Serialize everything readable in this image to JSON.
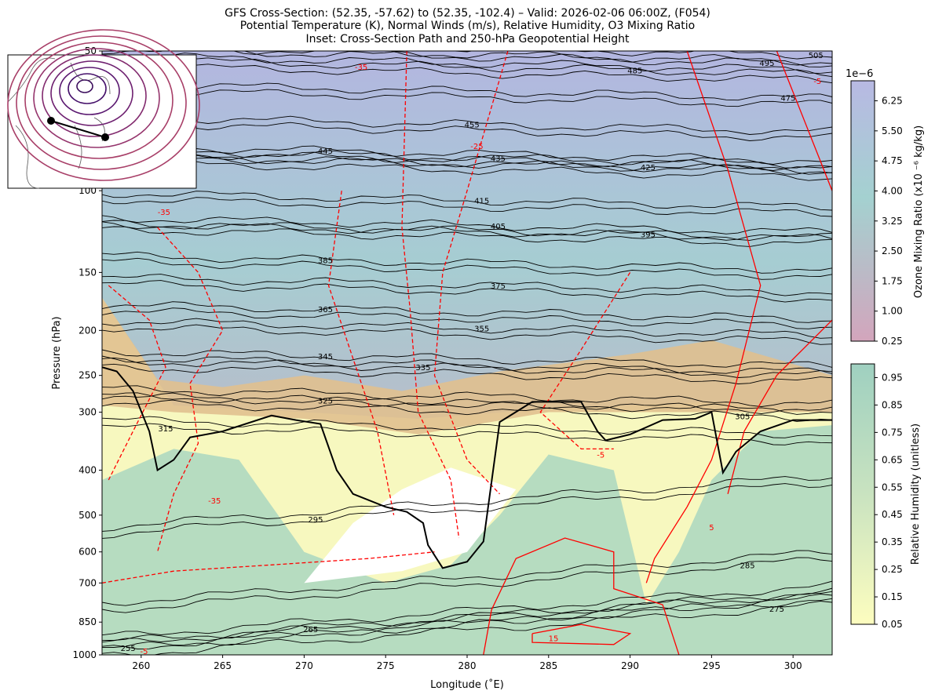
{
  "chart_data": {
    "type": "contour",
    "title": [
      "GFS Cross-Section: (52.35, -57.62) to (52.35, -102.4) – Valid: 2026-02-06 06:00Z, (F054)",
      "Potential Temperature (K), Normal Winds (m/s), Relative Humidity, O3 Mixing Ratio",
      "Inset: Cross-Section Path and 250-hPa Geopotential Height"
    ],
    "xlabel": "Longitude (˚E)",
    "ylabel": "Pressure (hPa)",
    "xlim": [
      257.6,
      302.4
    ],
    "ylim": [
      1000,
      50
    ],
    "yscale": "log",
    "xticks": [
      260,
      265,
      270,
      275,
      280,
      285,
      290,
      295,
      300
    ],
    "yticks": [
      50,
      100,
      150,
      200,
      250,
      300,
      400,
      500,
      600,
      700,
      850,
      1000
    ],
    "isentrope_labels": [
      {
        "v": "255",
        "lon": 259.2,
        "p": 965
      },
      {
        "v": "265",
        "lon": 270.4,
        "p": 880
      },
      {
        "v": "275",
        "lon": 299,
        "p": 795
      },
      {
        "v": "285",
        "lon": 297.2,
        "p": 640
      },
      {
        "v": "295",
        "lon": 270.7,
        "p": 510
      },
      {
        "v": "305",
        "lon": 296.9,
        "p": 306
      },
      {
        "v": "315",
        "lon": 261.5,
        "p": 325
      },
      {
        "v": "325",
        "lon": 271.3,
        "p": 283
      },
      {
        "v": "335",
        "lon": 277.3,
        "p": 240
      },
      {
        "v": "345",
        "lon": 271.3,
        "p": 227
      },
      {
        "v": "355",
        "lon": 280.9,
        "p": 198
      },
      {
        "v": "365",
        "lon": 271.3,
        "p": 180
      },
      {
        "v": "375",
        "lon": 281.9,
        "p": 160
      },
      {
        "v": "385",
        "lon": 271.3,
        "p": 141
      },
      {
        "v": "395",
        "lon": 291.1,
        "p": 124
      },
      {
        "v": "405",
        "lon": 281.9,
        "p": 119
      },
      {
        "v": "415",
        "lon": 280.9,
        "p": 105
      },
      {
        "v": "425",
        "lon": 291.1,
        "p": 89
      },
      {
        "v": "435",
        "lon": 281.9,
        "p": 85
      },
      {
        "v": "445",
        "lon": 271.3,
        "p": 82
      },
      {
        "v": "455",
        "lon": 280.3,
        "p": 72
      },
      {
        "v": "475",
        "lon": 299.7,
        "p": 63
      },
      {
        "v": "485",
        "lon": 290.3,
        "p": 55
      },
      {
        "v": "495",
        "lon": 298.4,
        "p": 53
      },
      {
        "v": "505",
        "lon": 301.4,
        "p": 51
      }
    ],
    "wind_labels": [
      {
        "v": "-35",
        "lon": 273.5,
        "p": 54
      },
      {
        "v": "-35",
        "lon": 261.4,
        "p": 111
      },
      {
        "v": "-25",
        "lon": 280.6,
        "p": 80
      },
      {
        "v": "-35",
        "lon": 264.5,
        "p": 465
      },
      {
        "v": "-5",
        "lon": 288.2,
        "p": 370
      },
      {
        "v": "5",
        "lon": 295,
        "p": 530
      },
      {
        "v": "15",
        "lon": 285.3,
        "p": 920
      },
      {
        "v": "-5",
        "lon": 259.6,
        "p": 980
      },
      {
        "v": "-5",
        "lon": 301.5,
        "p": 58
      }
    ],
    "tropopause_line": [
      [
        257.6,
        240
      ],
      [
        258.5,
        245
      ],
      [
        259.5,
        270
      ],
      [
        260.5,
        330
      ],
      [
        261,
        400
      ],
      [
        262,
        380
      ],
      [
        263,
        340
      ],
      [
        265,
        330
      ],
      [
        268,
        305
      ],
      [
        269.5,
        312
      ],
      [
        271,
        318
      ],
      [
        272,
        400
      ],
      [
        273,
        450
      ],
      [
        275,
        480
      ],
      [
        276.3,
        492
      ],
      [
        277.3,
        520
      ],
      [
        277.6,
        580
      ],
      [
        278.5,
        650
      ],
      [
        280,
        630
      ],
      [
        281,
        570
      ],
      [
        282,
        315
      ],
      [
        284,
        285
      ],
      [
        287,
        285
      ],
      [
        288,
        330
      ],
      [
        288.5,
        345
      ],
      [
        290,
        335
      ],
      [
        292,
        312
      ],
      [
        294,
        310
      ],
      [
        295,
        300
      ],
      [
        295.7,
        405
      ],
      [
        296.5,
        365
      ],
      [
        298,
        330
      ],
      [
        300,
        312
      ],
      [
        302.4,
        312
      ]
    ],
    "wind_dashed": [
      [
        [
          276.3,
          50
        ],
        [
          276,
          120
        ],
        [
          276.5,
          180
        ],
        [
          277,
          300
        ],
        [
          279,
          420
        ],
        [
          279.5,
          560
        ]
      ],
      [
        [
          282.5,
          50
        ],
        [
          280,
          100
        ],
        [
          278.5,
          150
        ],
        [
          278,
          250
        ],
        [
          280,
          380
        ],
        [
          282,
          450
        ]
      ],
      [
        [
          272.3,
          100
        ],
        [
          271.5,
          160
        ],
        [
          273,
          230
        ],
        [
          274.5,
          330
        ],
        [
          275.5,
          500
        ]
      ],
      [
        [
          261,
          120
        ],
        [
          263.5,
          150
        ],
        [
          265,
          200
        ],
        [
          263,
          260
        ],
        [
          263.5,
          350
        ],
        [
          262,
          450
        ],
        [
          261,
          600
        ]
      ],
      [
        [
          258,
          160
        ],
        [
          260.5,
          190
        ],
        [
          261.5,
          240
        ],
        [
          259.5,
          330
        ],
        [
          258,
          420
        ]
      ],
      [
        [
          290,
          150
        ],
        [
          287,
          220
        ],
        [
          284.5,
          300
        ],
        [
          287,
          360
        ],
        [
          289,
          360
        ]
      ],
      [
        [
          257.6,
          700
        ],
        [
          262,
          660
        ],
        [
          268,
          640
        ],
        [
          274,
          620
        ],
        [
          278,
          600
        ]
      ]
    ],
    "wind_solid": [
      [
        [
          293.5,
          50
        ],
        [
          296,
          90
        ],
        [
          298,
          160
        ],
        [
          296.5,
          260
        ],
        [
          295,
          380
        ],
        [
          293.5,
          480
        ],
        [
          291.5,
          620
        ],
        [
          291,
          700
        ]
      ],
      [
        [
          299,
          50
        ],
        [
          302.4,
          100
        ]
      ],
      [
        [
          302.4,
          190
        ],
        [
          299,
          250
        ],
        [
          297,
          330
        ],
        [
          296,
          450
        ]
      ],
      [
        [
          281,
          1000
        ],
        [
          281.5,
          800
        ],
        [
          283,
          620
        ],
        [
          286,
          560
        ],
        [
          289,
          600
        ],
        [
          289,
          720
        ],
        [
          292,
          780
        ],
        [
          293,
          1000
        ]
      ],
      [
        [
          284,
          900
        ],
        [
          287,
          860
        ],
        [
          290,
          900
        ],
        [
          289,
          950
        ],
        [
          284,
          940
        ],
        [
          284,
          900
        ]
      ]
    ],
    "colorbars": [
      {
        "label": "Ozone Mixing Ratio (x10 ⁻⁶ kg/kg)",
        "offset": "1e−6",
        "ticks": [
          "6.25",
          "5.50",
          "4.75",
          "4.00",
          "3.25",
          "2.50",
          "1.75",
          "1.00",
          "0.25"
        ],
        "range": [
          0.25,
          6.75
        ]
      },
      {
        "label": "Relative Humidity (unitless)",
        "ticks": [
          "0.95",
          "0.85",
          "0.75",
          "0.65",
          "0.55",
          "0.45",
          "0.35",
          "0.25",
          "0.15",
          "0.05"
        ],
        "range": [
          0.05,
          1.0
        ]
      }
    ],
    "inset": {
      "path": [
        [
          -102.4,
          52.35
        ],
        [
          -57.62,
          52.35
        ]
      ]
    }
  },
  "colors": {
    "wind": "#ff0000",
    "theta": "#000000"
  }
}
